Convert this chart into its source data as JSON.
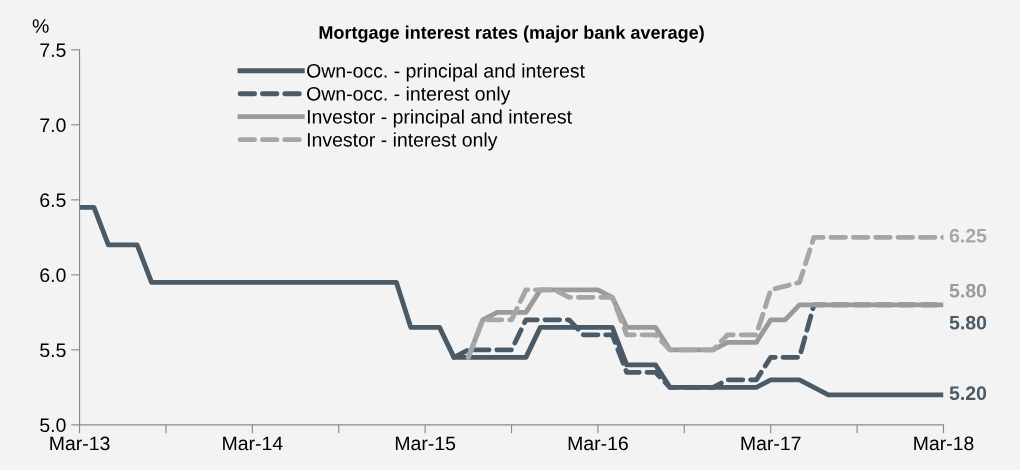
{
  "chart_data": {
    "type": "line",
    "title": "Mortgage interest rates (major bank average)",
    "ylabel": "%",
    "xlim": [
      "2013-03",
      "2018-03"
    ],
    "xticks": [
      {
        "value": "2013-03",
        "label": "Mar-13"
      },
      {
        "value": "2013-09",
        "label": null
      },
      {
        "value": "2014-03",
        "label": "Mar-14"
      },
      {
        "value": "2014-09",
        "label": null
      },
      {
        "value": "2015-03",
        "label": "Mar-15"
      },
      {
        "value": "2015-09",
        "label": null
      },
      {
        "value": "2016-03",
        "label": "Mar-16"
      },
      {
        "value": "2016-09",
        "label": null
      },
      {
        "value": "2017-03",
        "label": "Mar-17"
      },
      {
        "value": "2017-09",
        "label": null
      },
      {
        "value": "2018-03",
        "label": "Mar-18"
      }
    ],
    "ylim": [
      5.0,
      7.5
    ],
    "yticks": [
      {
        "value": 5.0,
        "label": "5.0"
      },
      {
        "value": 5.5,
        "label": "5.5"
      },
      {
        "value": 6.0,
        "label": "6.0"
      },
      {
        "value": 6.5,
        "label": "6.5"
      },
      {
        "value": 7.0,
        "label": "7.0"
      },
      {
        "value": 7.5,
        "label": "7.5"
      }
    ],
    "grid": false,
    "legend": "top",
    "marker": "none",
    "series": [
      {
        "name": "Own-occ. - principal and interest",
        "color": "#4a5a66",
        "line_style": "solid",
        "x": [
          "2013-03",
          "2013-04",
          "2013-05",
          "2013-07",
          "2013-08",
          "2015-01",
          "2015-02",
          "2015-04",
          "2015-05",
          "2015-10",
          "2015-11",
          "2016-04",
          "2016-05",
          "2016-07",
          "2016-08",
          "2017-02",
          "2017-03",
          "2017-05",
          "2017-07",
          "2018-03"
        ],
        "values": [
          6.45,
          6.45,
          6.2,
          6.2,
          5.95,
          5.95,
          5.65,
          5.65,
          5.45,
          5.45,
          5.65,
          5.65,
          5.4,
          5.4,
          5.25,
          5.25,
          5.3,
          5.3,
          5.2,
          5.2
        ]
      },
      {
        "name": "Own-occ. - interest only",
        "color": "#4a5a66",
        "line_style": "dashed",
        "x": [
          "2015-05",
          "2015-06",
          "2015-09",
          "2015-10",
          "2016-01",
          "2016-02",
          "2016-04",
          "2016-05",
          "2016-07",
          "2016-08",
          "2016-11",
          "2016-12",
          "2017-02",
          "2017-03",
          "2017-05",
          "2017-06",
          "2018-03"
        ],
        "values": [
          5.45,
          5.5,
          5.5,
          5.7,
          5.7,
          5.6,
          5.6,
          5.35,
          5.35,
          5.25,
          5.25,
          5.3,
          5.3,
          5.45,
          5.45,
          5.8,
          5.8
        ]
      },
      {
        "name": "Investor - principal and interest",
        "color": "#9a9a9a",
        "line_style": "solid",
        "x": [
          "2015-06",
          "2015-07",
          "2015-08",
          "2015-10",
          "2015-11",
          "2016-03",
          "2016-04",
          "2016-05",
          "2016-07",
          "2016-08",
          "2016-11",
          "2016-12",
          "2017-02",
          "2017-03",
          "2017-04",
          "2017-05",
          "2018-03"
        ],
        "values": [
          5.45,
          5.7,
          5.75,
          5.75,
          5.9,
          5.9,
          5.85,
          5.65,
          5.65,
          5.5,
          5.5,
          5.55,
          5.55,
          5.7,
          5.7,
          5.8,
          5.8
        ]
      },
      {
        "name": "Investor - interest only",
        "color": "#a6a6a6",
        "line_style": "dashed",
        "x": [
          "2015-06",
          "2015-07",
          "2015-09",
          "2015-10",
          "2015-12",
          "2016-01",
          "2016-04",
          "2016-05",
          "2016-07",
          "2016-08",
          "2016-11",
          "2016-12",
          "2017-02",
          "2017-03",
          "2017-05",
          "2017-06",
          "2018-03"
        ],
        "values": [
          5.45,
          5.7,
          5.7,
          5.9,
          5.9,
          5.85,
          5.85,
          5.6,
          5.6,
          5.5,
          5.5,
          5.6,
          5.6,
          5.9,
          5.95,
          6.25,
          6.25
        ]
      }
    ],
    "annotations": [
      {
        "text": "6.25",
        "x": "2018-03",
        "y": 6.25
      },
      {
        "text": "5.80",
        "x": "2018-03",
        "y": 5.8
      },
      {
        "text": "5.80",
        "x": "2018-03",
        "y": 5.8
      },
      {
        "text": "5.20",
        "x": "2018-03",
        "y": 5.2
      }
    ]
  }
}
